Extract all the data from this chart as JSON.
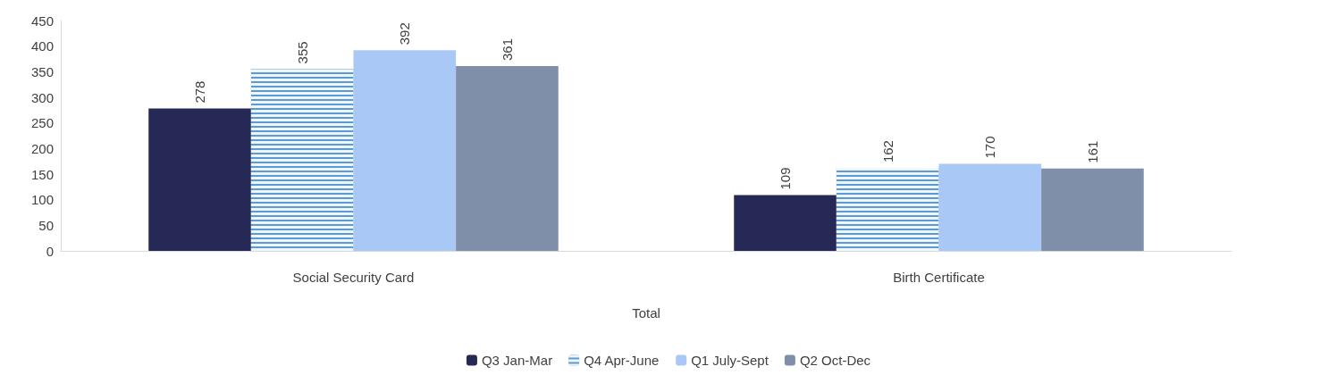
{
  "chart_data": {
    "type": "bar",
    "xlabel": "Total",
    "categories": [
      "Social Security Card",
      "Birth Certificate"
    ],
    "series": [
      {
        "name": "Q3 Jan-Mar",
        "color": "#262955",
        "values": [
          278,
          109
        ]
      },
      {
        "name": "Q4 Apr-June",
        "color": "#5b9bd5",
        "values": [
          355,
          162
        ]
      },
      {
        "name": "Q1 July-Sept",
        "color": "#a9c8f5",
        "values": [
          392,
          170
        ]
      },
      {
        "name": "Q2 Oct-Dec",
        "color": "#7f8fa9",
        "values": [
          361,
          161
        ]
      }
    ],
    "ylim": [
      0,
      450
    ],
    "yticks": [
      0,
      50,
      100,
      150,
      200,
      250,
      300,
      350,
      400,
      450
    ],
    "grid": false,
    "legend": "bottom",
    "data_labels": true
  }
}
